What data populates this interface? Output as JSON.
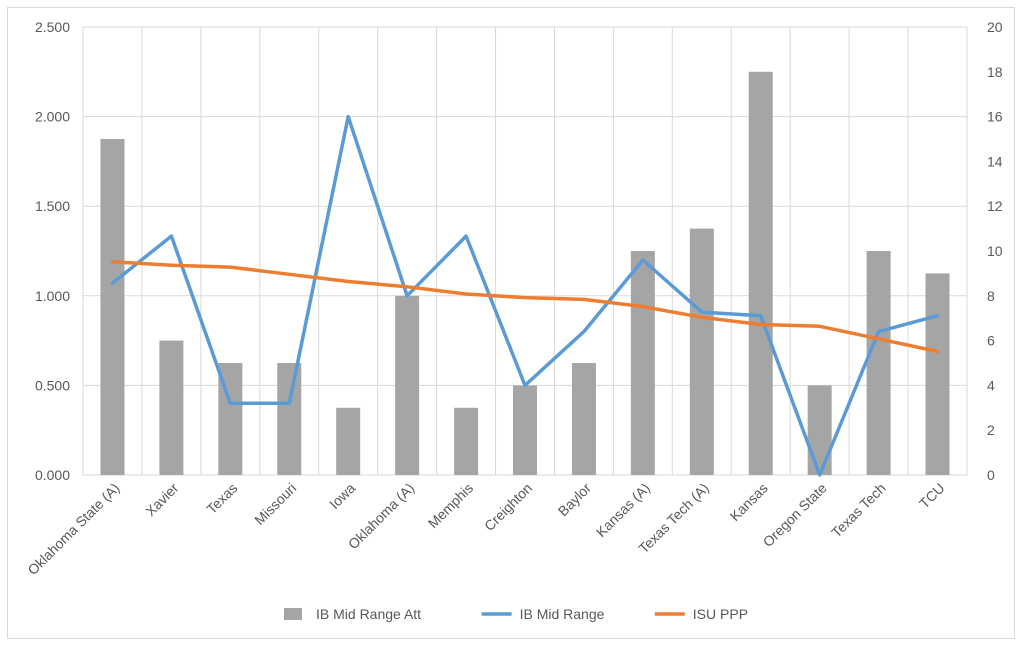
{
  "chart_data": {
    "type": "bar",
    "title": "",
    "categories": [
      "Oklahoma State (A)",
      "Xavier",
      "Texas",
      "Missouri",
      "Iowa",
      "Oklahoma (A)",
      "Memphis",
      "Creighton",
      "Baylor",
      "Kansas (A)",
      "Texas Tech (A)",
      "Kansas",
      "Oregon State",
      "Texas Tech",
      "TCU"
    ],
    "y_left": {
      "ylim": [
        0,
        2.5
      ],
      "ticks": [
        "0.000",
        "0.500",
        "1.000",
        "1.500",
        "2.000",
        "2.500"
      ]
    },
    "y_right": {
      "ylim": [
        0,
        20
      ],
      "ticks": [
        "0",
        "2",
        "4",
        "6",
        "8",
        "10",
        "12",
        "14",
        "16",
        "18",
        "20"
      ]
    },
    "grid": true,
    "legend_position": "bottom",
    "series": [
      {
        "name": "IB Mid Range Att",
        "type": "bar",
        "axis": "right",
        "color": "#a5a5a5",
        "values": [
          15,
          6,
          5,
          5,
          3,
          8,
          3,
          4,
          5,
          10,
          11,
          18,
          4,
          10,
          9
        ]
      },
      {
        "name": "IB Mid Range",
        "type": "line",
        "axis": "left",
        "color": "#5b9bd5",
        "values": [
          1.071,
          1.333,
          0.4,
          0.4,
          2.0,
          1.0,
          1.333,
          0.5,
          0.8,
          1.2,
          0.909,
          0.889,
          0.0,
          0.8,
          0.889
        ]
      },
      {
        "name": "ISU PPP",
        "type": "line",
        "axis": "left",
        "color": "#ed7d31",
        "values": [
          1.19,
          1.17,
          1.16,
          1.12,
          1.08,
          1.05,
          1.01,
          0.99,
          0.98,
          0.94,
          0.88,
          0.84,
          0.83,
          0.76,
          0.69
        ]
      }
    ]
  }
}
